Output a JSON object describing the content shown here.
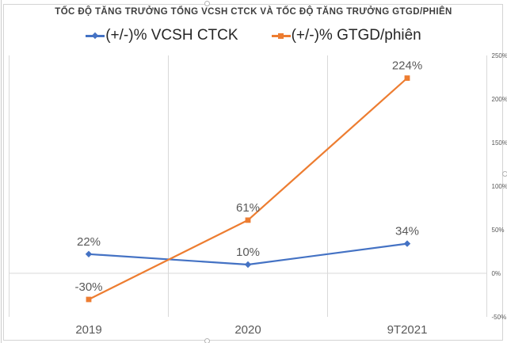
{
  "chart_data": {
    "type": "line",
    "title": "TỐC ĐỘ TĂNG TRƯỞNG TỔNG VCSH CTCK VÀ TỐC ĐỘ TĂNG TRƯỞNG GTGD/PHIÊN",
    "categories": [
      "2019",
      "2020",
      "9T2021"
    ],
    "series": [
      {
        "name": "(+/-)% VCSH CTCK",
        "color": "#4472C4",
        "marker": "diamond",
        "values": [
          22,
          10,
          34
        ],
        "data_labels": [
          "22%",
          "10%",
          "34%"
        ]
      },
      {
        "name": "(+/-)% GTGD/phiên",
        "color": "#ED7D31",
        "marker": "square",
        "values": [
          -30,
          61,
          224
        ],
        "data_labels": [
          "-30%",
          "61%",
          "224%"
        ]
      }
    ],
    "xlabel": "",
    "ylabel": "",
    "y_axis": {
      "side": "right",
      "min": -50,
      "max": 250,
      "step": 50,
      "tick_labels_top_to_bottom": [
        "250%",
        "200%",
        "150%",
        "100%",
        "50%",
        "0%",
        "-50%"
      ]
    },
    "legend_position": "top",
    "grid": {
      "vertical_category_boundaries": true,
      "horizontal": false,
      "zero_line": true
    }
  },
  "legend": {
    "items": [
      {
        "label": "(+/-)% VCSH CTCK",
        "color": "#4472C4",
        "marker": "diamond"
      },
      {
        "label": "(+/-)% GTGD/phiên",
        "color": "#ED7D31",
        "marker": "square"
      }
    ]
  },
  "colors": {
    "series_blue": "#4472C4",
    "series_orange": "#ED7D31",
    "gridline": "#D9D9D9",
    "label_gray": "#595959",
    "title_dark": "#3D3D3D"
  }
}
